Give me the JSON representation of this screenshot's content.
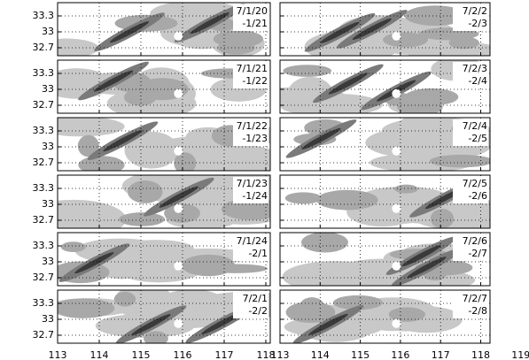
{
  "yticks": [
    33.3,
    33,
    32.7
  ],
  "xticks_left": [
    113,
    114,
    115,
    116,
    117,
    118
  ],
  "xticks_right": [
    113,
    114,
    115,
    116,
    117,
    118,
    119
  ],
  "panels_left": [
    {
      "line1": "7/1/20",
      "line2": "-1/21"
    },
    {
      "line1": "7/1/21",
      "line2": "-1/22"
    },
    {
      "line1": "7/1/22",
      "line2": "-1/23"
    },
    {
      "line1": "7/1/23",
      "line2": "-1/24"
    },
    {
      "line1": "7/1/24",
      "line2": "-2/1"
    },
    {
      "line1": "7/2/1",
      "line2": "-2/2"
    }
  ],
  "panels_right": [
    {
      "line1": "7/2/2",
      "line2": "-2/3"
    },
    {
      "line1": "7/2/3",
      "line2": "-2/4"
    },
    {
      "line1": "7/2/4",
      "line2": "-2/5"
    },
    {
      "line1": "7/2/5",
      "line2": "-2/6"
    },
    {
      "line1": "7/2/6",
      "line2": "-2/7"
    },
    {
      "line1": "7/2/7",
      "line2": "-2/8"
    }
  ]
}
